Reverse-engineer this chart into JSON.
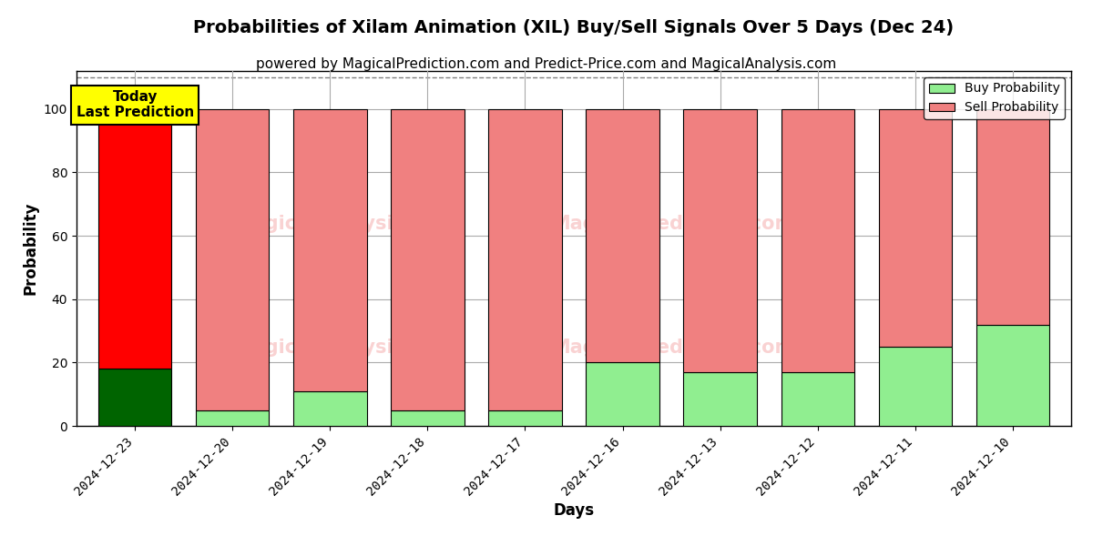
{
  "title": "Probabilities of Xilam Animation (XIL) Buy/Sell Signals Over 5 Days (Dec 24)",
  "subtitle": "powered by MagicalPrediction.com and Predict-Price.com and MagicalAnalysis.com",
  "xlabel": "Days",
  "ylabel": "Probability",
  "categories": [
    "2024-12-23",
    "2024-12-20",
    "2024-12-19",
    "2024-12-18",
    "2024-12-17",
    "2024-12-16",
    "2024-12-13",
    "2024-12-12",
    "2024-12-11",
    "2024-12-10"
  ],
  "buy_values": [
    18,
    5,
    11,
    5,
    5,
    20,
    17,
    17,
    25,
    32
  ],
  "sell_values": [
    82,
    95,
    89,
    95,
    95,
    80,
    83,
    83,
    75,
    68
  ],
  "today_index": 0,
  "buy_color_today": "#006400",
  "sell_color_today": "#FF0000",
  "buy_color_normal": "#90EE90",
  "sell_color_normal": "#F08080",
  "ylim": [
    0,
    112
  ],
  "dashed_line_y": 110,
  "legend_buy": "Buy Probability",
  "legend_sell": "Sell Probability",
  "today_label": "Today\nLast Prediction",
  "today_label_bg": "#FFFF00",
  "watermark_color": "#F08080",
  "watermark_alpha": 0.35,
  "title_fontsize": 14,
  "subtitle_fontsize": 11,
  "axis_label_fontsize": 12,
  "tick_fontsize": 10,
  "background_color": "#FFFFFF",
  "grid_color": "#AAAAAA",
  "bar_edge_color": "#000000",
  "bar_linewidth": 0.8,
  "bar_width": 0.75
}
